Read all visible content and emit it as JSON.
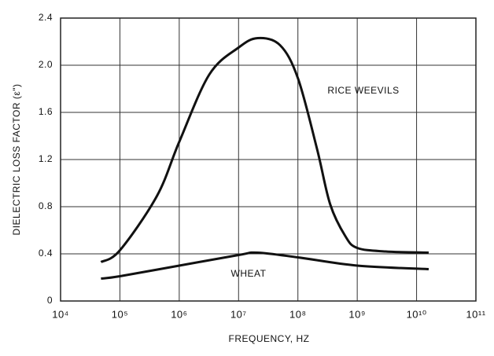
{
  "chart_data": {
    "type": "line",
    "xlabel": "FREQUENCY, HZ",
    "ylabel": "DIELECTRIC LOSS FACTOR (ε\")",
    "xscale": "log",
    "grid": true,
    "xlim": [
      10000,
      100000000000
    ],
    "xticks": [
      {
        "value": 10000,
        "label": "10⁴"
      },
      {
        "value": 100000,
        "label": "10⁵"
      },
      {
        "value": 1000000,
        "label": "10⁶"
      },
      {
        "value": 10000000,
        "label": "10⁷"
      },
      {
        "value": 100000000,
        "label": "10⁸"
      },
      {
        "value": 1000000000,
        "label": "10⁹"
      },
      {
        "value": 10000000000,
        "label": "10¹⁰"
      },
      {
        "value": 100000000000,
        "label": "10¹¹"
      }
    ],
    "ylim": [
      0,
      2.4
    ],
    "yticks": [
      0,
      0.4,
      0.8,
      1.2,
      1.6,
      {
        "value": 2,
        "label": "2.0"
      },
      2.4
    ],
    "series": [
      {
        "name": "RICE WEEVILS",
        "color": "#111111",
        "x": [
          48000,
          100000,
          420000,
          1000000,
          3200000,
          10000000,
          21000000,
          50000000,
          100000000,
          210000000,
          350000000,
          630000000,
          1000000000,
          3000000000,
          16000000000
        ],
        "values": [
          0.33,
          0.43,
          0.89,
          1.35,
          1.92,
          2.15,
          2.23,
          2.17,
          1.89,
          1.29,
          0.82,
          0.55,
          0.45,
          0.42,
          0.41
        ]
      },
      {
        "name": "WHEAT",
        "color": "#111111",
        "x": [
          48000,
          100000,
          1000000,
          10000000,
          21000000,
          100000000,
          1000000000,
          16000000000
        ],
        "values": [
          0.19,
          0.21,
          0.3,
          0.39,
          0.41,
          0.37,
          0.3,
          0.27
        ]
      }
    ]
  }
}
